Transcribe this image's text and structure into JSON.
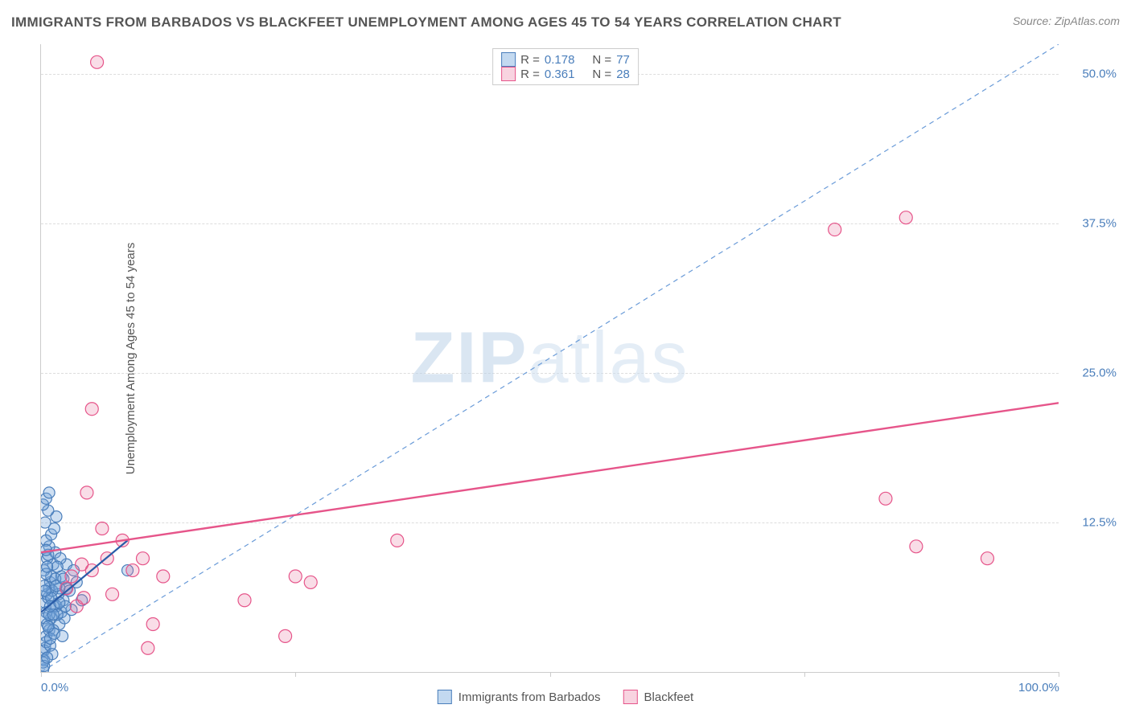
{
  "title": "IMMIGRANTS FROM BARBADOS VS BLACKFEET UNEMPLOYMENT AMONG AGES 45 TO 54 YEARS CORRELATION CHART",
  "source": "Source: ZipAtlas.com",
  "y_axis_label": "Unemployment Among Ages 45 to 54 years",
  "watermark_a": "ZIP",
  "watermark_b": "atlas",
  "chart": {
    "type": "scatter",
    "xlim": [
      0,
      100
    ],
    "ylim": [
      0,
      52.5
    ],
    "x_tick_labels": {
      "0": "0.0%",
      "100": "100.0%"
    },
    "y_tick_labels": {
      "12.5": "12.5%",
      "25": "25.0%",
      "37.5": "37.5%",
      "50": "50.0%"
    },
    "x_ticks": [
      0,
      25,
      50,
      75,
      100
    ],
    "gridline_color": "#dddddd",
    "axis_color": "#cccccc",
    "background_color": "#ffffff",
    "tick_label_color": "#4a7ebb",
    "series": [
      {
        "name": "Immigrants from Barbados",
        "marker_color_fill": "rgba(116,162,217,0.35)",
        "marker_color_stroke": "#4a7ebb",
        "marker_radius": 7,
        "legend_swatch_fill": "#c3d9f0",
        "legend_swatch_border": "#4a7ebb",
        "R": "0.178",
        "N": "77",
        "trend": {
          "x1": 0,
          "y1": 5,
          "x2": 8.5,
          "y2": 11,
          "color": "#2a5ca8",
          "width": 2.2,
          "dash": null
        },
        "diag_line": {
          "x1": 0,
          "y1": 0,
          "x2": 100,
          "y2": 52.5,
          "color": "#6a9bd8",
          "width": 1.2,
          "dash": "6,5"
        },
        "points": [
          [
            0.2,
            0.2
          ],
          [
            0.3,
            1.0
          ],
          [
            0.4,
            2.0
          ],
          [
            0.5,
            3.0
          ],
          [
            0.6,
            4.0
          ],
          [
            0.5,
            5.0
          ],
          [
            0.4,
            5.8
          ],
          [
            0.7,
            6.2
          ],
          [
            0.8,
            7.0
          ],
          [
            0.9,
            7.5
          ],
          [
            1.0,
            8.0
          ],
          [
            0.3,
            8.5
          ],
          [
            1.2,
            9.0
          ],
          [
            0.6,
            9.5
          ],
          [
            1.4,
            10.0
          ],
          [
            0.8,
            10.5
          ],
          [
            0.5,
            11.0
          ],
          [
            1.0,
            11.5
          ],
          [
            1.3,
            12.0
          ],
          [
            0.4,
            12.5
          ],
          [
            1.5,
            13.0
          ],
          [
            0.7,
            13.5
          ],
          [
            0.2,
            0.8
          ],
          [
            0.3,
            1.8
          ],
          [
            0.5,
            2.5
          ],
          [
            0.8,
            3.5
          ],
          [
            1.0,
            4.5
          ],
          [
            1.2,
            5.5
          ],
          [
            0.6,
            6.5
          ],
          [
            1.8,
            4.0
          ],
          [
            2.0,
            5.0
          ],
          [
            2.2,
            6.0
          ],
          [
            2.5,
            7.0
          ],
          [
            1.8,
            7.0
          ],
          [
            2.0,
            8.0
          ],
          [
            2.3,
            4.5
          ],
          [
            1.5,
            5.5
          ],
          [
            1.7,
            6.5
          ],
          [
            1.2,
            3.5
          ],
          [
            0.9,
            2.2
          ],
          [
            1.1,
            1.5
          ],
          [
            0.2,
            14.0
          ],
          [
            0.5,
            14.5
          ],
          [
            0.8,
            15.0
          ],
          [
            0.3,
            0.5
          ],
          [
            0.6,
            1.2
          ],
          [
            0.9,
            2.8
          ],
          [
            1.3,
            3.2
          ],
          [
            1.6,
            4.8
          ],
          [
            2.8,
            6.8
          ],
          [
            3.0,
            5.2
          ],
          [
            3.5,
            7.5
          ],
          [
            4.0,
            6.0
          ],
          [
            2.5,
            9.0
          ],
          [
            3.2,
            8.5
          ],
          [
            1.9,
            9.5
          ],
          [
            0.4,
            4.5
          ],
          [
            0.7,
            3.8
          ],
          [
            1.1,
            6.8
          ],
          [
            1.4,
            7.8
          ],
          [
            0.5,
            8.2
          ],
          [
            2.1,
            3.0
          ],
          [
            2.4,
            5.5
          ],
          [
            1.6,
            8.8
          ],
          [
            0.8,
            4.8
          ],
          [
            1.0,
            6.2
          ],
          [
            0.3,
            7.2
          ],
          [
            0.6,
            8.8
          ],
          [
            1.2,
            4.8
          ],
          [
            0.9,
            5.5
          ],
          [
            1.5,
            7.2
          ],
          [
            0.4,
            6.8
          ],
          [
            0.7,
            9.8
          ],
          [
            1.8,
            5.8
          ],
          [
            2.2,
            7.8
          ],
          [
            0.5,
            10.2
          ],
          [
            8.5,
            8.5
          ]
        ]
      },
      {
        "name": "Blackfeet",
        "marker_color_fill": "rgba(232,120,160,0.25)",
        "marker_color_stroke": "#e6558a",
        "marker_radius": 8,
        "legend_swatch_fill": "#f8d3e0",
        "legend_swatch_border": "#e6558a",
        "R": "0.361",
        "N": "28",
        "trend": {
          "x1": 0,
          "y1": 10,
          "x2": 100,
          "y2": 22.5,
          "color": "#e6558a",
          "width": 2.4,
          "dash": null
        },
        "points": [
          [
            5.5,
            51.0
          ],
          [
            3.0,
            8.0
          ],
          [
            4.0,
            9.0
          ],
          [
            5.0,
            8.5
          ],
          [
            6.0,
            12.0
          ],
          [
            7.0,
            6.5
          ],
          [
            8.0,
            11.0
          ],
          [
            9.0,
            8.5
          ],
          [
            10.0,
            9.5
          ],
          [
            11.0,
            4.0
          ],
          [
            10.5,
            2.0
          ],
          [
            4.5,
            15.0
          ],
          [
            5.0,
            22.0
          ],
          [
            12.0,
            8.0
          ],
          [
            20.0,
            6.0
          ],
          [
            24.0,
            3.0
          ],
          [
            25.0,
            8.0
          ],
          [
            26.5,
            7.5
          ],
          [
            35.0,
            11.0
          ],
          [
            78.0,
            37.0
          ],
          [
            83.0,
            14.5
          ],
          [
            85.0,
            38.0
          ],
          [
            86.0,
            10.5
          ],
          [
            93.0,
            9.5
          ],
          [
            3.5,
            5.5
          ],
          [
            6.5,
            9.5
          ],
          [
            2.5,
            7.0
          ],
          [
            4.2,
            6.2
          ]
        ]
      }
    ]
  },
  "legend_bottom": [
    {
      "label": "Immigrants from Barbados",
      "fill": "#c3d9f0",
      "border": "#4a7ebb"
    },
    {
      "label": "Blackfeet",
      "fill": "#f8d3e0",
      "border": "#e6558a"
    }
  ],
  "legend_top_labels": {
    "R": "R =",
    "N": "N ="
  }
}
